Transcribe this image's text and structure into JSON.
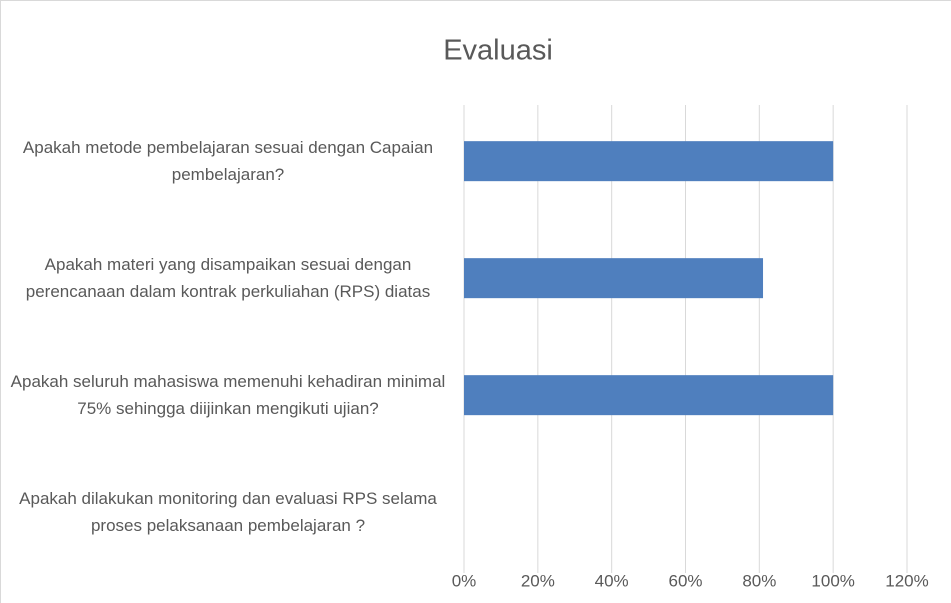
{
  "chart_data": {
    "type": "hbar",
    "title": "Evaluasi",
    "categories": [
      "Apakah metode pembelajaran sesuai dengan Capaian pembelajaran?",
      "Apakah materi yang disampaikan sesuai dengan perencanaan dalam kontrak perkuliahan (RPS) diatas",
      "Apakah seluruh mahasiswa memenuhi kehadiran minimal 75% sehingga diijinkan mengikuti ujian?",
      "Apakah dilakukan monitoring dan evaluasi RPS selama proses pelaksanaan pembelajaran ?"
    ],
    "values": [
      100,
      81,
      100,
      0
    ],
    "color": "#4f7fbe",
    "xlim": [
      0,
      120
    ],
    "xticks": [
      {
        "value": 0,
        "label": "0%"
      },
      {
        "value": 20,
        "label": "20%"
      },
      {
        "value": 40,
        "label": "40%"
      },
      {
        "value": 60,
        "label": "60%"
      },
      {
        "value": 80,
        "label": "80%"
      },
      {
        "value": 100,
        "label": "100%"
      },
      {
        "value": 120,
        "label": "120%"
      }
    ],
    "grid": true
  }
}
